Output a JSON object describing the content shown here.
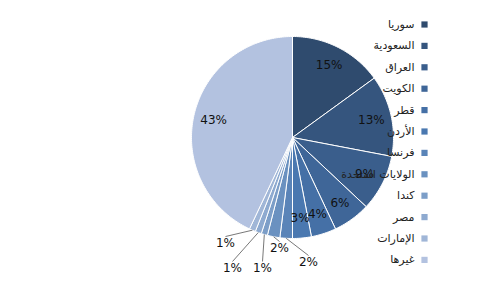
{
  "chart_data": {
    "type": "pie",
    "categories": [
      "سوريا",
      "السعودية",
      "العراق",
      "الكويت",
      "قطر",
      "الأردن",
      "فرنسا",
      "الولايات المتحدة",
      "كندا",
      "مصر",
      "الإمارات",
      "غيرها"
    ],
    "values": [
      15,
      13,
      9,
      6,
      4,
      3,
      2,
      2,
      1,
      1,
      1,
      43
    ],
    "value_labels": [
      "15%",
      "13%",
      "9%",
      "6%",
      "4%",
      "3%",
      "2%",
      "2%",
      "1%",
      "1%",
      "1%",
      "43%"
    ],
    "colors": [
      "#2f4b6e",
      "#35557e",
      "#3a5e8c",
      "#3f6698",
      "#4570a6",
      "#4a78b0",
      "#5a84b8",
      "#6a91c0",
      "#7c9ec8",
      "#8eaad0",
      "#a0b6d7",
      "#b3c2e0"
    ],
    "data_labels": true,
    "legend": "right"
  }
}
